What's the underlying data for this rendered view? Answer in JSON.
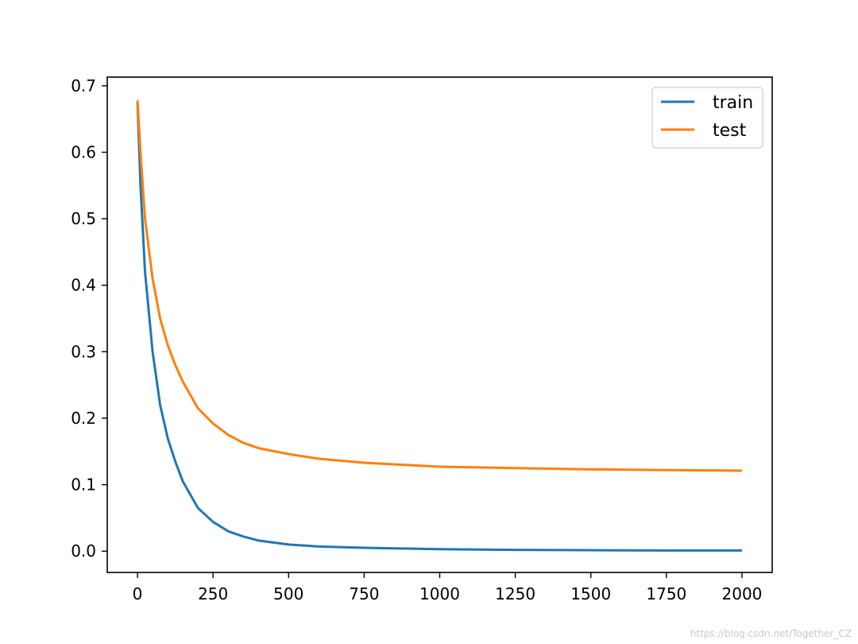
{
  "chart_data": {
    "type": "line",
    "title": "",
    "xlabel": "",
    "ylabel": "",
    "xlim": [
      -100,
      2100
    ],
    "ylim": [
      -0.032,
      0.713
    ],
    "xticks": [
      0,
      250,
      500,
      750,
      1000,
      1250,
      1500,
      1750,
      2000
    ],
    "yticks": [
      0.0,
      0.1,
      0.2,
      0.3,
      0.4,
      0.5,
      0.6,
      0.7
    ],
    "ytick_labels": [
      "0.0",
      "0.1",
      "0.2",
      "0.3",
      "0.4",
      "0.5",
      "0.6",
      "0.7"
    ],
    "grid": false,
    "legend_position": "top-right",
    "series": [
      {
        "name": "train",
        "color": "#1f77b4",
        "x": [
          0,
          10,
          25,
          50,
          75,
          100,
          125,
          150,
          200,
          250,
          300,
          350,
          400,
          500,
          600,
          750,
          1000,
          1250,
          1500,
          1750,
          2000
        ],
        "y": [
          0.675,
          0.55,
          0.42,
          0.3,
          0.22,
          0.17,
          0.135,
          0.105,
          0.065,
          0.044,
          0.03,
          0.022,
          0.016,
          0.01,
          0.007,
          0.005,
          0.003,
          0.002,
          0.0015,
          0.001,
          0.001
        ]
      },
      {
        "name": "test",
        "color": "#ff7f0e",
        "x": [
          0,
          10,
          25,
          50,
          75,
          100,
          125,
          150,
          200,
          250,
          300,
          350,
          400,
          500,
          600,
          750,
          1000,
          1250,
          1500,
          1750,
          2000
        ],
        "y": [
          0.678,
          0.6,
          0.5,
          0.41,
          0.35,
          0.31,
          0.28,
          0.255,
          0.215,
          0.192,
          0.175,
          0.163,
          0.155,
          0.146,
          0.139,
          0.133,
          0.127,
          0.125,
          0.123,
          0.122,
          0.121
        ]
      }
    ]
  },
  "watermark": "https://blog.csdn.net/Together_CZ"
}
